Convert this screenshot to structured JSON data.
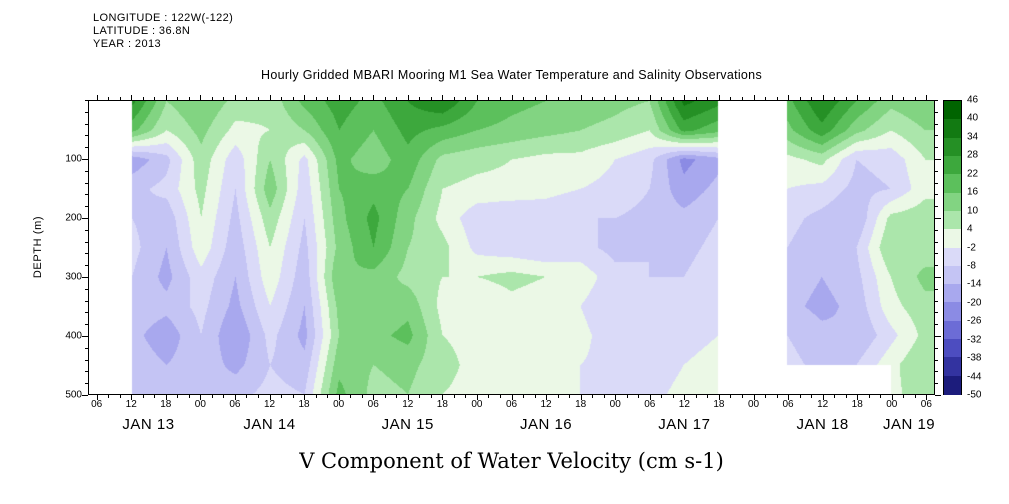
{
  "header": {
    "longitude": "LONGITUDE : 122W(-122)",
    "latitude": "LATITUDE : 36.8N",
    "year": "YEAR : 2013"
  },
  "chart_data": {
    "type": "heatmap",
    "title": "Hourly Gridded MBARI Mooring M1 Sea Water Temperature and Salinity Observations",
    "xlabel": "V Component of Water Velocity (cm s-1)",
    "ylabel": "DEPTH (m)",
    "x_domain_hours": [
      -1.5,
      145.5
    ],
    "y_domain_depth_m": [
      0,
      500
    ],
    "x_tick_labels": [
      "06",
      "12",
      "18",
      "00",
      "06",
      "12",
      "18",
      "00",
      "06",
      "12",
      "18",
      "00",
      "06",
      "12",
      "18",
      "00",
      "06",
      "12",
      "18",
      "00",
      "06",
      "12",
      "18",
      "00",
      "06"
    ],
    "x_minor_step_hours": 2,
    "day_labels": [
      "JAN 13",
      "JAN 14",
      "JAN 15",
      "JAN 16",
      "JAN 17",
      "JAN 18",
      "JAN 19"
    ],
    "day_center_hours": [
      9,
      30,
      54,
      78,
      102,
      126,
      141
    ],
    "y_tick_labels": [
      "100",
      "200",
      "300",
      "400",
      "500"
    ],
    "y_tick_depths": [
      100,
      200,
      300,
      400,
      500
    ],
    "y_minor_step_m": 20,
    "grid": "off",
    "time_hours": [
      0,
      6,
      12,
      18,
      24,
      30,
      36,
      42,
      48,
      54,
      60,
      66,
      72,
      78,
      84,
      90,
      96,
      102,
      108,
      114,
      120,
      126,
      132,
      138,
      144
    ],
    "depths": [
      0,
      50,
      100,
      150,
      200,
      250,
      300,
      350,
      400,
      450,
      500
    ],
    "values": [
      [
        null,
        30,
        10,
        16,
        8,
        6,
        18,
        25,
        20,
        28,
        34,
        22,
        18,
        16,
        14,
        12,
        10,
        36,
        30,
        null,
        20,
        34,
        22,
        12,
        16
      ],
      [
        null,
        18,
        4,
        12,
        2,
        4,
        10,
        22,
        16,
        24,
        20,
        16,
        14,
        12,
        10,
        8,
        4,
        24,
        18,
        null,
        14,
        26,
        12,
        4,
        10
      ],
      [
        null,
        -18,
        -10,
        8,
        -6,
        10,
        -4,
        18,
        12,
        20,
        8,
        6,
        4,
        2,
        2,
        -2,
        -6,
        -22,
        -16,
        null,
        2,
        6,
        -8,
        -6,
        4
      ],
      [
        null,
        -10,
        -6,
        6,
        -8,
        14,
        -6,
        16,
        20,
        16,
        4,
        2,
        2,
        0,
        -2,
        -4,
        -8,
        -18,
        -12,
        null,
        -2,
        -4,
        -10,
        -8,
        2
      ],
      [
        null,
        -8,
        -12,
        4,
        -10,
        8,
        -8,
        14,
        24,
        12,
        2,
        -6,
        -8,
        -6,
        -8,
        -8,
        -10,
        -12,
        -8,
        null,
        -6,
        -10,
        -14,
        6,
        8
      ],
      [
        null,
        -6,
        -14,
        2,
        -12,
        4,
        -10,
        12,
        22,
        10,
        6,
        -4,
        -6,
        -8,
        -6,
        -10,
        -8,
        -10,
        -6,
        null,
        -8,
        -12,
        -8,
        10,
        6
      ],
      [
        null,
        -8,
        -16,
        -4,
        -14,
        2,
        -12,
        16,
        14,
        8,
        4,
        4,
        6,
        4,
        2,
        -6,
        -8,
        -8,
        -4,
        null,
        -10,
        -14,
        -10,
        4,
        12
      ],
      [
        null,
        -10,
        -12,
        -6,
        -16,
        -2,
        -14,
        12,
        10,
        14,
        2,
        -2,
        2,
        0,
        -2,
        -8,
        -6,
        -6,
        -4,
        null,
        -12,
        -16,
        -12,
        2,
        8
      ],
      [
        null,
        -12,
        -18,
        -8,
        -20,
        -6,
        -16,
        10,
        14,
        18,
        4,
        2,
        4,
        2,
        0,
        -6,
        -8,
        -4,
        -2,
        null,
        -8,
        -12,
        -14,
        -4,
        6
      ],
      [
        null,
        -10,
        -14,
        -10,
        -16,
        -8,
        -12,
        14,
        10,
        12,
        6,
        2,
        2,
        0,
        -2,
        -4,
        -6,
        -2,
        0,
        null,
        -6,
        -10,
        -8,
        2,
        10
      ],
      [
        null,
        -8,
        -10,
        -12,
        -10,
        -6,
        -8,
        18,
        8,
        10,
        4,
        2,
        0,
        0,
        -2,
        -2,
        -4,
        0,
        2,
        null,
        null,
        null,
        null,
        2,
        8
      ]
    ],
    "missing_color": "#ffffff",
    "colorbar": {
      "position": "right",
      "levels": [
        46,
        40,
        34,
        28,
        22,
        16,
        10,
        4,
        -2,
        -8,
        -14,
        -20,
        -26,
        -32,
        -38,
        -44,
        -50
      ],
      "colors": [
        "#006400",
        "#127a12",
        "#259025",
        "#3da83d",
        "#5cc05c",
        "#82d482",
        "#abe6ab",
        "#ebf8e6",
        "#dadaf8",
        "#c4c4f4",
        "#a8a8ee",
        "#8b8be4",
        "#6c6cd6",
        "#4d4dc0",
        "#3333a0",
        "#1c1c7c"
      ],
      "over_color": "#004b00",
      "under_color": "#0d0d5a"
    }
  }
}
